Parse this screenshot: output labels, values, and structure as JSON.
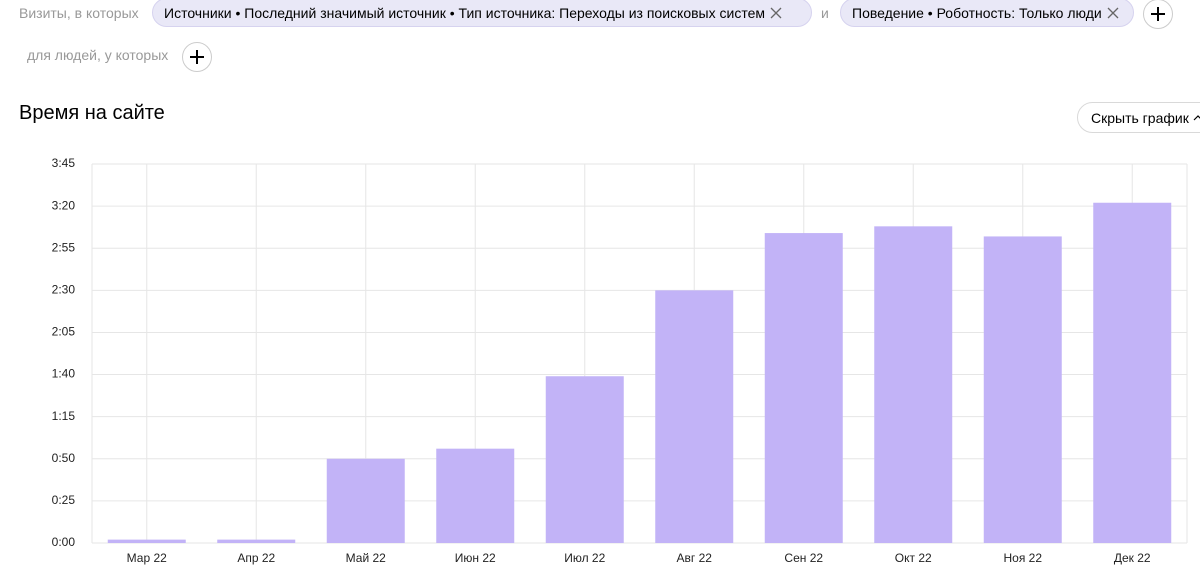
{
  "filters": {
    "prefix": "Визиты, в которых",
    "chips": [
      "Источники • Последний значимый источник • Тип источника: Переходы из поисковых систем",
      "Поведение • Роботность: Только люди"
    ],
    "joiner": "и",
    "people_prefix": "для людей, у которых"
  },
  "hide_chart_button": "Скрыть график",
  "chart_data": {
    "type": "bar",
    "title": "Время на сайте",
    "categories": [
      "Мар 22",
      "Апр 22",
      "Май 22",
      "Июн 22",
      "Июл 22",
      "Авг 22",
      "Сен 22",
      "Окт 22",
      "Ноя 22",
      "Дек 22"
    ],
    "values": [
      2,
      2,
      50,
      56,
      99,
      150,
      184,
      188,
      182,
      202
    ],
    "color": "#c2b3f7",
    "ylim": [
      0,
      225
    ],
    "yticks": [
      {
        "value": 0,
        "label": "0:00"
      },
      {
        "value": 25,
        "label": "0:25"
      },
      {
        "value": 50,
        "label": "0:50"
      },
      {
        "value": 75,
        "label": "1:15"
      },
      {
        "value": 100,
        "label": "1:40"
      },
      {
        "value": 125,
        "label": "2:05"
      },
      {
        "value": 150,
        "label": "2:30"
      },
      {
        "value": 175,
        "label": "2:55"
      },
      {
        "value": 200,
        "label": "3:20"
      },
      {
        "value": 225,
        "label": "3:45"
      }
    ],
    "grid": true
  }
}
